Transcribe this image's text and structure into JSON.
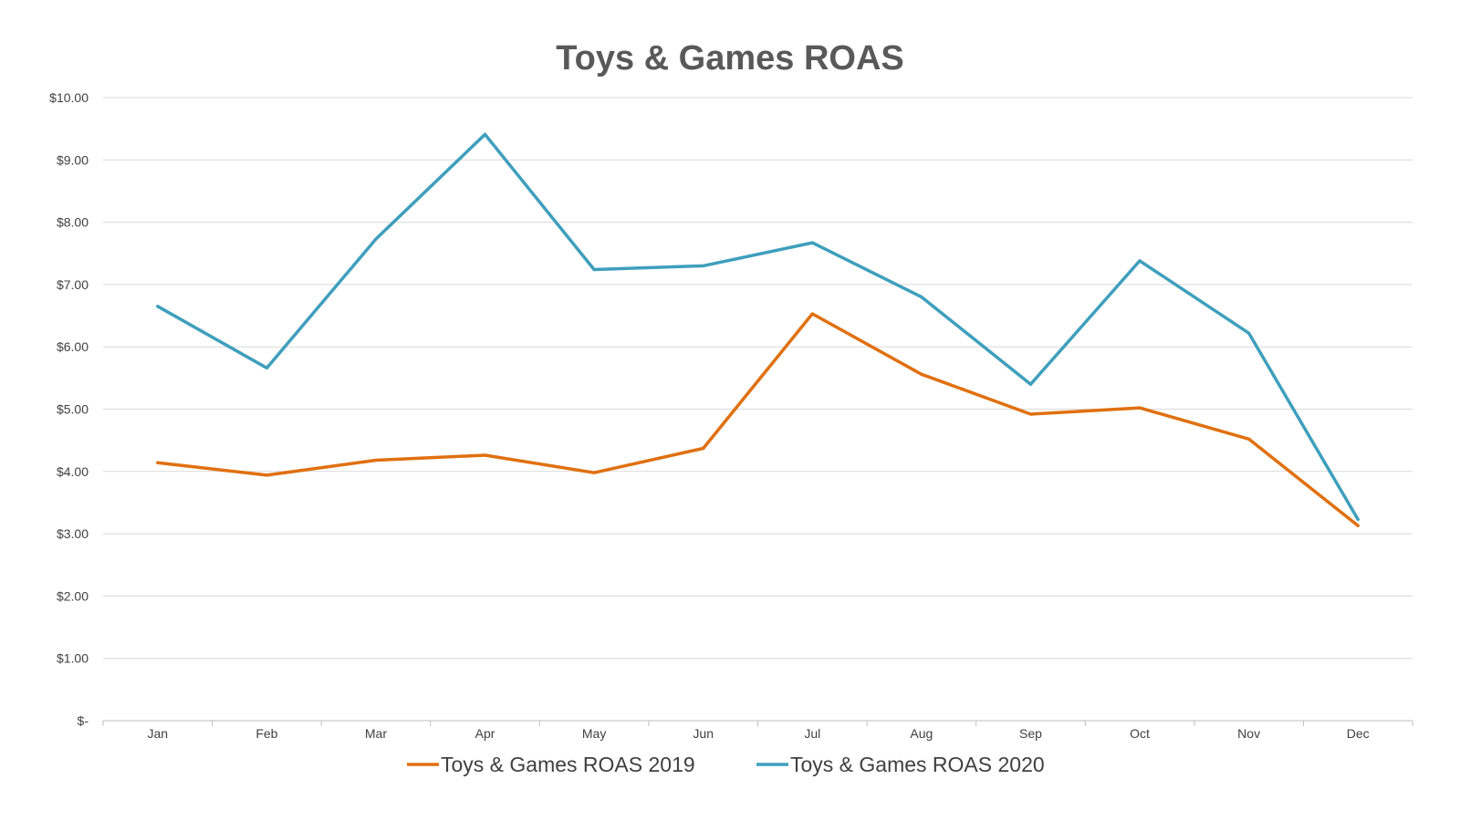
{
  "chart_data": {
    "type": "line",
    "title": "Toys & Games  ROAS",
    "xlabel": "",
    "ylabel": "",
    "categories": [
      "Jan",
      "Feb",
      "Mar",
      "Apr",
      "May",
      "Jun",
      "Jul",
      "Aug",
      "Sep",
      "Oct",
      "Nov",
      "Dec"
    ],
    "ylim": [
      0,
      10
    ],
    "yticks": [
      0,
      1,
      2,
      3,
      4,
      5,
      6,
      7,
      8,
      9,
      10
    ],
    "ytick_labels": [
      "$-",
      "$1.00",
      "$2.00",
      "$3.00",
      "$4.00",
      "$5.00",
      "$6.00",
      "$7.00",
      "$8.00",
      "$9.00",
      "$10.00"
    ],
    "grid": true,
    "legend_position": "bottom",
    "series": [
      {
        "name": "Toys & Games  ROAS 2019",
        "color": "#E0700F",
        "values": [
          4.14,
          3.94,
          4.18,
          4.26,
          3.98,
          4.37,
          6.53,
          5.56,
          4.92,
          5.02,
          4.52,
          3.13
        ]
      },
      {
        "name": "Toys & Games  ROAS 2020",
        "color": "#3E9FBC",
        "values": [
          6.65,
          5.66,
          7.73,
          9.41,
          7.24,
          7.3,
          7.67,
          6.8,
          5.4,
          7.38,
          6.22,
          3.23
        ]
      }
    ]
  }
}
